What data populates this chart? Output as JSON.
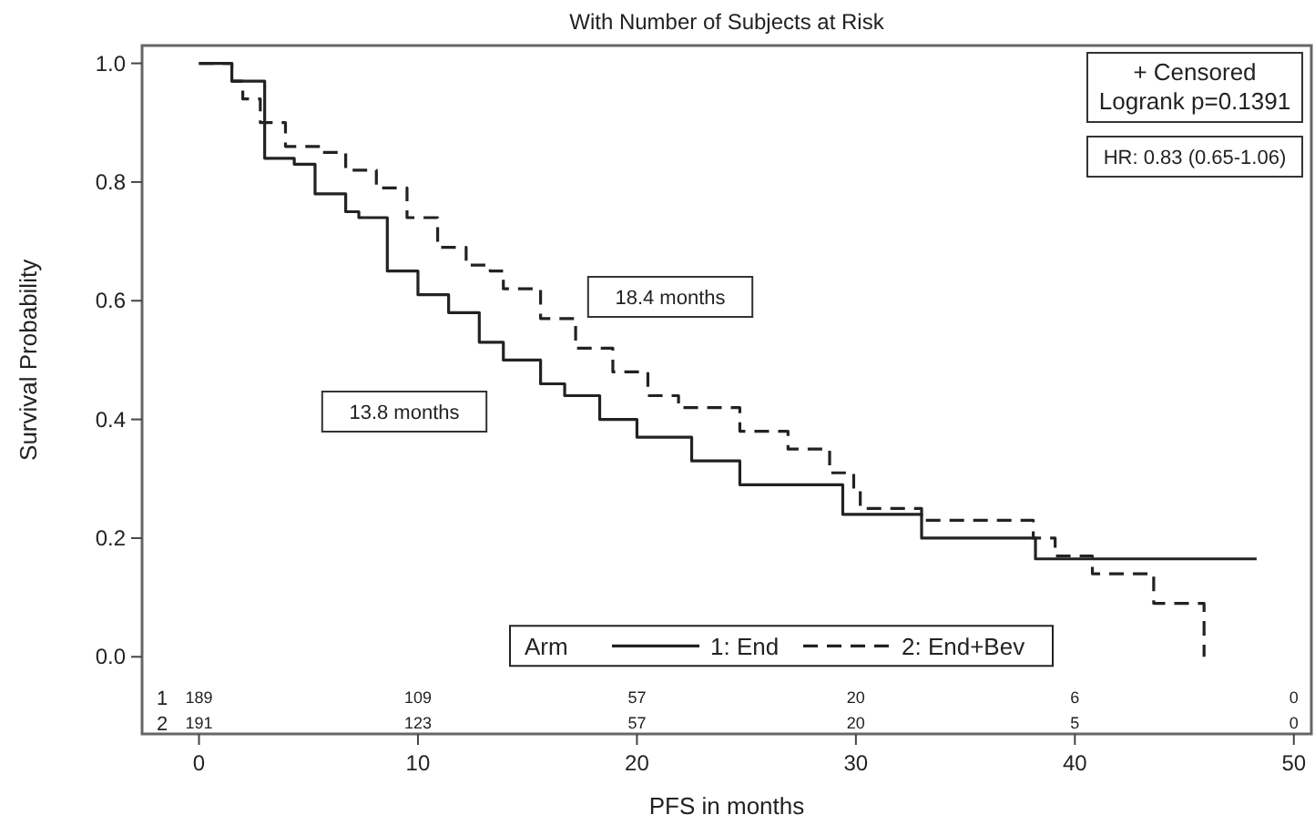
{
  "chart_data": {
    "type": "step",
    "title": "With Number of Subjects at Risk",
    "xlabel": "PFS in months",
    "ylabel": "Survival Probability",
    "legend_title": "Arm",
    "legend": "bottom",
    "grid": false,
    "marker": "none",
    "xlim": [
      -2.6,
      50.8
    ],
    "ylim": [
      -0.13,
      1.03
    ],
    "xticks": [
      0,
      10,
      20,
      30,
      40,
      50
    ],
    "yticks": [
      {
        "value": 0,
        "label": "0.0"
      },
      {
        "value": 0.2,
        "label": "0.2"
      },
      {
        "value": 0.4,
        "label": "0.4"
      },
      {
        "value": 0.6,
        "label": "0.6"
      },
      {
        "value": 0.8,
        "label": "0.8"
      },
      {
        "value": 1,
        "label": "1.0"
      }
    ],
    "series": [
      {
        "name": "1: End",
        "color": "#222222",
        "line_style": "solid",
        "x": [
          0,
          1.5,
          3.0,
          4.35,
          5.3,
          6.7,
          7.3,
          8.6,
          10.0,
          11.4,
          12.8,
          13.9,
          15.6,
          16.7,
          18.3,
          20.0,
          22.5,
          24.7,
          29.4,
          33.0,
          38.2,
          48.3
        ],
        "values": [
          1.0,
          0.97,
          0.84,
          0.83,
          0.78,
          0.75,
          0.74,
          0.65,
          0.61,
          0.58,
          0.53,
          0.5,
          0.46,
          0.44,
          0.4,
          0.37,
          0.33,
          0.29,
          0.24,
          0.2,
          0.165,
          0.165
        ]
      },
      {
        "name": "2: End+Bev",
        "color": "#222222",
        "line_style": "dashed",
        "x": [
          0,
          1.5,
          2.0,
          2.8,
          3.95,
          5.6,
          6.7,
          8.1,
          9.5,
          10.9,
          12.2,
          13.3,
          13.9,
          15.6,
          17.2,
          18.9,
          20.5,
          21.9,
          24.7,
          26.9,
          28.8,
          29.9,
          30.2,
          33.0,
          38.1,
          39.1,
          40.8,
          43.6,
          45.9
        ],
        "values": [
          1.0,
          0.97,
          0.94,
          0.9,
          0.86,
          0.85,
          0.82,
          0.79,
          0.74,
          0.69,
          0.66,
          0.65,
          0.62,
          0.57,
          0.52,
          0.48,
          0.44,
          0.42,
          0.38,
          0.35,
          0.31,
          0.28,
          0.25,
          0.23,
          0.2,
          0.17,
          0.14,
          0.09,
          0.0
        ]
      }
    ],
    "annotations": [
      "+ Censored\nLogrank p=0.1391",
      "HR: 0.83 (0.65-1.06)",
      "18.4 months",
      "13.8 months",
      "1",
      "2",
      "189",
      "109",
      "57",
      "20",
      "6",
      "0",
      "191",
      "123",
      "57",
      "20",
      "5",
      "0"
    ]
  }
}
